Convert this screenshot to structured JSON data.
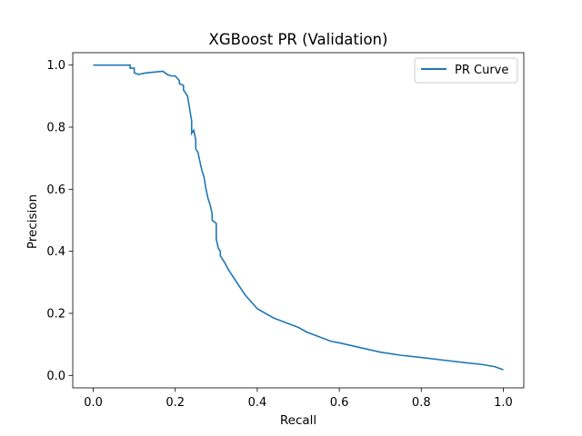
{
  "chart_data": {
    "type": "line",
    "title": "XGBoost PR (Validation)",
    "xlabel": "Recall",
    "ylabel": "Precision",
    "xlim": [
      -0.05,
      1.05
    ],
    "ylim": [
      -0.04,
      1.04
    ],
    "x_ticks": [
      0.0,
      0.2,
      0.4,
      0.6,
      0.8,
      1.0
    ],
    "x_tick_labels": [
      "0.0",
      "0.2",
      "0.4",
      "0.6",
      "0.8",
      "1.0"
    ],
    "y_ticks": [
      0.0,
      0.2,
      0.4,
      0.6,
      0.8,
      1.0
    ],
    "y_tick_labels": [
      "0.0",
      "0.2",
      "0.4",
      "0.6",
      "0.8",
      "1.0"
    ],
    "grid": false,
    "legend_position": "top-right",
    "series": [
      {
        "name": "PR Curve",
        "color": "#1f77b4",
        "x": [
          0.0,
          0.09,
          0.09,
          0.1,
          0.1,
          0.11,
          0.13,
          0.17,
          0.18,
          0.19,
          0.2,
          0.21,
          0.21,
          0.22,
          0.22,
          0.23,
          0.235,
          0.24,
          0.24,
          0.245,
          0.25,
          0.25,
          0.255,
          0.26,
          0.265,
          0.27,
          0.275,
          0.28,
          0.285,
          0.29,
          0.29,
          0.3,
          0.3,
          0.305,
          0.31,
          0.31,
          0.315,
          0.32,
          0.33,
          0.34,
          0.35,
          0.36,
          0.37,
          0.38,
          0.39,
          0.4,
          0.42,
          0.44,
          0.46,
          0.48,
          0.5,
          0.52,
          0.55,
          0.58,
          0.6,
          0.65,
          0.7,
          0.75,
          0.8,
          0.85,
          0.9,
          0.95,
          0.98,
          1.0
        ],
        "y": [
          1.0,
          1.0,
          0.99,
          0.99,
          0.975,
          0.97,
          0.975,
          0.98,
          0.97,
          0.965,
          0.965,
          0.95,
          0.94,
          0.935,
          0.92,
          0.9,
          0.86,
          0.82,
          0.78,
          0.79,
          0.76,
          0.73,
          0.72,
          0.69,
          0.66,
          0.64,
          0.6,
          0.57,
          0.55,
          0.52,
          0.5,
          0.49,
          0.44,
          0.41,
          0.4,
          0.385,
          0.375,
          0.365,
          0.34,
          0.32,
          0.3,
          0.28,
          0.26,
          0.245,
          0.23,
          0.215,
          0.2,
          0.185,
          0.175,
          0.165,
          0.155,
          0.14,
          0.125,
          0.11,
          0.105,
          0.09,
          0.075,
          0.065,
          0.058,
          0.05,
          0.042,
          0.035,
          0.028,
          0.018
        ]
      }
    ]
  }
}
